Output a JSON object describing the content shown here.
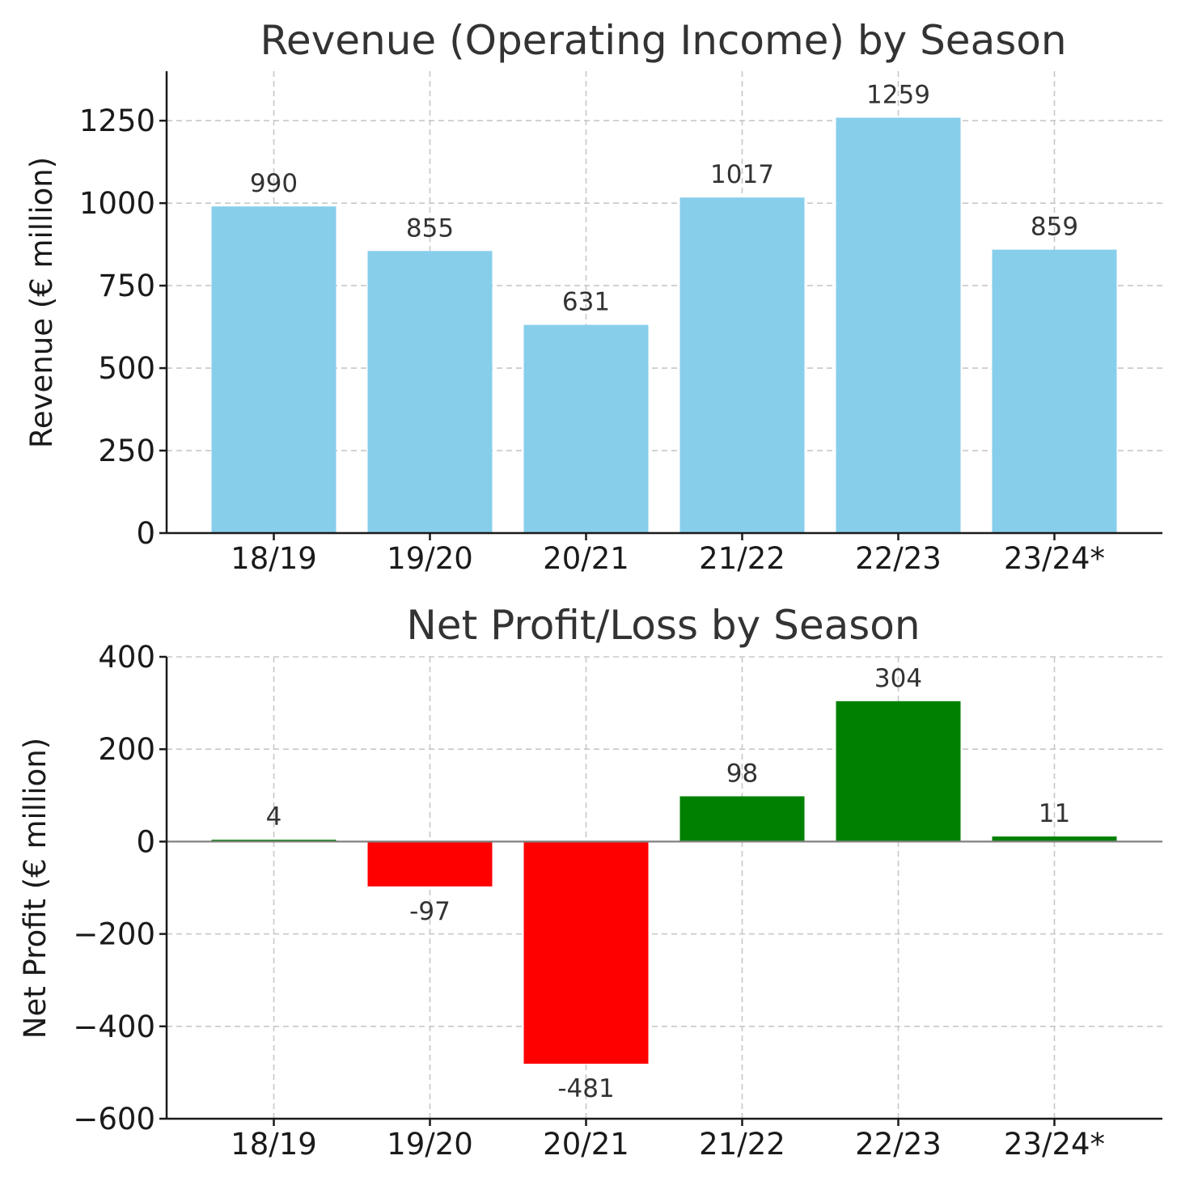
{
  "chart_data": [
    {
      "type": "bar",
      "title": "Revenue (Operating Income) by Season",
      "ylabel": "Revenue (€ million)",
      "xlabel": "",
      "categories": [
        "18/19",
        "19/20",
        "20/21",
        "21/22",
        "22/23",
        "23/24*"
      ],
      "values": [
        990,
        855,
        631,
        1017,
        1259,
        859
      ],
      "data_labels": [
        "990",
        "855",
        "631",
        "1017",
        "1259",
        "859"
      ],
      "yticks": [
        0,
        250,
        500,
        750,
        1000,
        1250
      ],
      "ytick_labels": [
        "0",
        "250",
        "500",
        "750",
        "1000",
        "1250"
      ],
      "ylim": [
        0,
        1400
      ],
      "grid": true,
      "colors": {
        "bar": "#87ceeb"
      }
    },
    {
      "type": "bar",
      "title": "Net Profit/Loss by Season",
      "ylabel": "Net Profit (€ million)",
      "xlabel": "",
      "categories": [
        "18/19",
        "19/20",
        "20/21",
        "21/22",
        "22/23",
        "23/24*"
      ],
      "values": [
        4,
        -97,
        -481,
        98,
        304,
        11
      ],
      "data_labels": [
        "4",
        "-97",
        "-481",
        "98",
        "304",
        "11"
      ],
      "yticks": [
        -600,
        -400,
        -200,
        0,
        200,
        400
      ],
      "ytick_labels": [
        "−600",
        "−400",
        "−200",
        "0",
        "200",
        "400"
      ],
      "ylim": [
        -600,
        400
      ],
      "grid": true,
      "zero_line": true,
      "colors": {
        "positive": "#008000",
        "negative": "#ff0000",
        "zero_line": "#808080"
      }
    }
  ]
}
